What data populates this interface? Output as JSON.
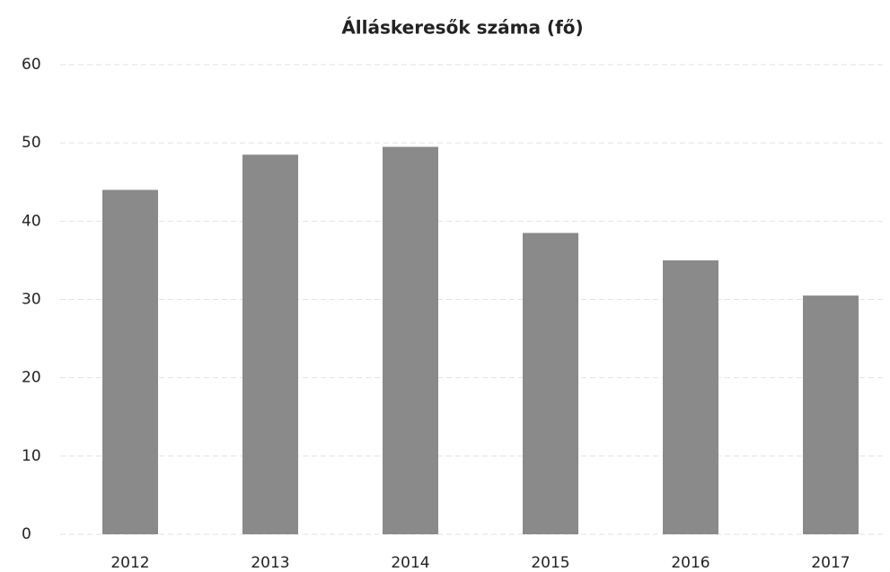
{
  "chart_data": {
    "type": "bar",
    "title": "Álláskeresők száma (fő)",
    "categories": [
      "2012",
      "2013",
      "2014",
      "2015",
      "2016",
      "2017"
    ],
    "values": [
      44,
      48.5,
      49.5,
      38.5,
      35,
      30.5
    ],
    "color": "#8a8a8a",
    "ylim": [
      0,
      60
    ],
    "yticks": [
      0,
      10,
      20,
      30,
      40,
      50,
      60
    ],
    "grid": true
  }
}
